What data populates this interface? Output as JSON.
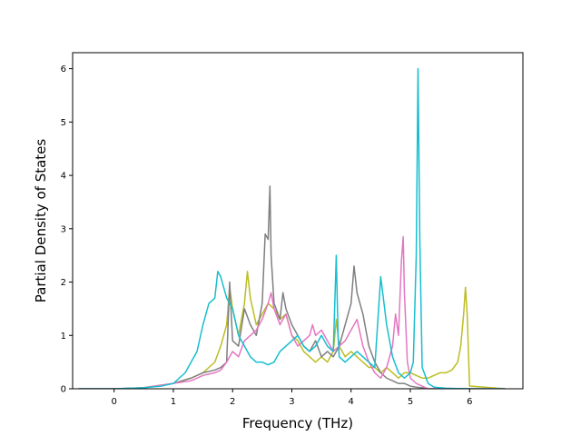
{
  "chart_data": {
    "type": "line",
    "title": "",
    "xlabel": "Frequency (THz)",
    "ylabel": "Partial Density of States",
    "xlim": [
      -0.7,
      6.9
    ],
    "ylim": [
      0,
      6.3
    ],
    "xticks": [
      0,
      1,
      2,
      3,
      4,
      5,
      6
    ],
    "yticks": [
      0,
      1,
      2,
      3,
      4,
      5,
      6
    ],
    "grid": false,
    "legend": "none",
    "series": [
      {
        "color": "#bcbd22",
        "x": [
          -0.6,
          0,
          0.5,
          1.0,
          1.3,
          1.5,
          1.7,
          1.8,
          1.9,
          1.95,
          2.0,
          2.1,
          2.2,
          2.25,
          2.3,
          2.4,
          2.5,
          2.6,
          2.7,
          2.8,
          2.9,
          3.0,
          3.1,
          3.2,
          3.3,
          3.4,
          3.5,
          3.6,
          3.7,
          3.75,
          3.8,
          3.9,
          4.0,
          4.1,
          4.2,
          4.3,
          4.4,
          4.5,
          4.6,
          4.7,
          4.8,
          4.9,
          5.0,
          5.1,
          5.2,
          5.3,
          5.4,
          5.5,
          5.6,
          5.7,
          5.8,
          5.85,
          5.9,
          5.93,
          5.96,
          6.0,
          6.6
        ],
        "values": [
          0,
          0,
          0.02,
          0.1,
          0.2,
          0.3,
          0.5,
          0.8,
          1.2,
          1.9,
          1.5,
          1.0,
          1.6,
          2.2,
          1.7,
          1.2,
          1.4,
          1.6,
          1.5,
          1.3,
          1.4,
          1.0,
          0.9,
          0.7,
          0.6,
          0.5,
          0.6,
          0.5,
          0.7,
          1.3,
          0.8,
          0.6,
          0.7,
          0.6,
          0.5,
          0.4,
          0.4,
          0.3,
          0.4,
          0.3,
          0.2,
          0.3,
          0.3,
          0.25,
          0.2,
          0.2,
          0.25,
          0.3,
          0.3,
          0.35,
          0.5,
          0.8,
          1.4,
          1.9,
          1.4,
          0.05,
          0
        ]
      },
      {
        "color": "#7f7f7f",
        "x": [
          -0.6,
          0,
          0.5,
          1.0,
          1.3,
          1.5,
          1.7,
          1.8,
          1.9,
          1.95,
          2.0,
          2.1,
          2.2,
          2.3,
          2.4,
          2.5,
          2.55,
          2.6,
          2.63,
          2.65,
          2.7,
          2.8,
          2.85,
          2.9,
          3.0,
          3.1,
          3.2,
          3.3,
          3.4,
          3.5,
          3.6,
          3.7,
          3.8,
          3.9,
          4.0,
          4.05,
          4.1,
          4.2,
          4.3,
          4.4,
          4.5,
          4.6,
          4.7,
          4.8,
          4.9,
          5.0,
          5.1,
          5.2,
          5.3,
          6.6
        ],
        "values": [
          0,
          0,
          0.02,
          0.1,
          0.2,
          0.3,
          0.35,
          0.4,
          0.5,
          2.0,
          0.9,
          0.8,
          1.5,
          1.2,
          1.0,
          1.6,
          2.9,
          2.8,
          3.8,
          2.5,
          1.6,
          1.3,
          1.8,
          1.5,
          1.2,
          1.0,
          0.8,
          0.7,
          0.9,
          0.6,
          0.7,
          0.6,
          0.8,
          1.2,
          1.6,
          2.3,
          1.8,
          1.4,
          0.8,
          0.5,
          0.3,
          0.2,
          0.15,
          0.1,
          0.1,
          0.05,
          0.03,
          0.02,
          0,
          0
        ]
      },
      {
        "color": "#e377c2",
        "x": [
          -0.6,
          0,
          0.5,
          1.0,
          1.3,
          1.5,
          1.7,
          1.8,
          1.9,
          2.0,
          2.1,
          2.2,
          2.3,
          2.4,
          2.5,
          2.6,
          2.65,
          2.7,
          2.8,
          2.9,
          3.0,
          3.1,
          3.2,
          3.3,
          3.35,
          3.4,
          3.5,
          3.6,
          3.7,
          3.8,
          3.9,
          4.0,
          4.1,
          4.2,
          4.3,
          4.4,
          4.5,
          4.6,
          4.7,
          4.75,
          4.8,
          4.85,
          4.88,
          4.9,
          4.95,
          5.0,
          5.1,
          5.2,
          5.3,
          6.6
        ],
        "values": [
          0,
          0,
          0.02,
          0.1,
          0.15,
          0.25,
          0.3,
          0.35,
          0.5,
          0.7,
          0.6,
          0.9,
          1.0,
          1.1,
          1.3,
          1.6,
          1.8,
          1.5,
          1.2,
          1.4,
          1.0,
          0.8,
          0.9,
          1.0,
          1.2,
          1.0,
          1.1,
          0.9,
          0.7,
          0.8,
          0.9,
          1.1,
          1.3,
          0.8,
          0.5,
          0.3,
          0.2,
          0.4,
          0.8,
          1.4,
          1.0,
          2.4,
          2.85,
          1.8,
          0.5,
          0.2,
          0.1,
          0.05,
          0,
          0
        ]
      },
      {
        "color": "#17becf",
        "x": [
          -0.6,
          0,
          0.5,
          0.8,
          1.0,
          1.2,
          1.4,
          1.5,
          1.6,
          1.7,
          1.75,
          1.8,
          1.9,
          2.0,
          2.1,
          2.2,
          2.3,
          2.4,
          2.5,
          2.6,
          2.7,
          2.8,
          2.9,
          3.0,
          3.1,
          3.2,
          3.3,
          3.4,
          3.5,
          3.6,
          3.7,
          3.75,
          3.78,
          3.8,
          3.9,
          4.0,
          4.1,
          4.2,
          4.3,
          4.4,
          4.5,
          4.6,
          4.7,
          4.8,
          4.9,
          5.0,
          5.05,
          5.1,
          5.13,
          5.16,
          5.2,
          5.3,
          5.4,
          5.6,
          6.0,
          6.6
        ],
        "values": [
          0,
          0,
          0.02,
          0.05,
          0.1,
          0.3,
          0.7,
          1.2,
          1.6,
          1.7,
          2.2,
          2.1,
          1.7,
          1.5,
          1.0,
          0.8,
          0.6,
          0.5,
          0.5,
          0.45,
          0.5,
          0.7,
          0.8,
          0.9,
          1.0,
          0.8,
          0.7,
          0.8,
          1.0,
          0.8,
          0.7,
          2.5,
          1.0,
          0.6,
          0.5,
          0.6,
          0.7,
          0.6,
          0.5,
          0.4,
          2.1,
          1.2,
          0.6,
          0.3,
          0.2,
          0.3,
          0.5,
          2.5,
          6.0,
          2.8,
          0.4,
          0.1,
          0.03,
          0.01,
          0,
          0
        ]
      }
    ]
  }
}
